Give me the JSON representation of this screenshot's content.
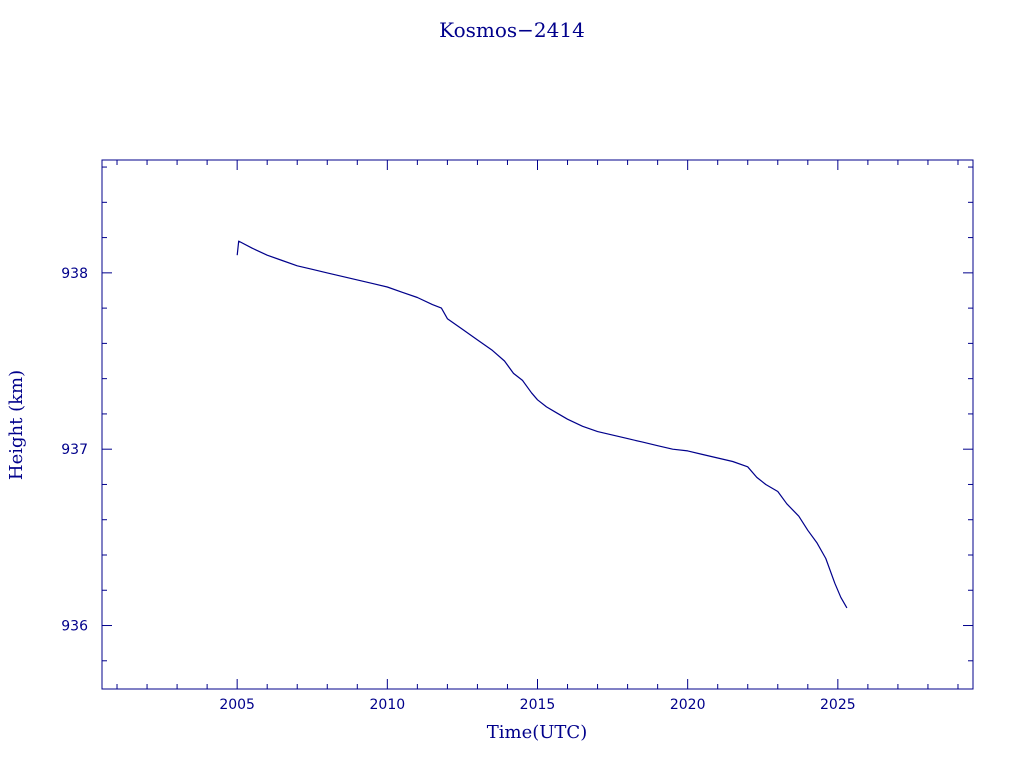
{
  "chart_data": {
    "type": "line",
    "title": "Kosmos−2414",
    "xlabel": "Time(UTC)",
    "ylabel": "Height (km)",
    "xlim": [
      2000.5,
      2029.5
    ],
    "ylim": [
      935.64,
      938.64
    ],
    "x_ticks": [
      "2005",
      "2010",
      "2015",
      "2020",
      "2025"
    ],
    "y_ticks": [
      "936",
      "937",
      "938"
    ],
    "grid": false,
    "series": [
      {
        "color": "#00008b",
        "x": [
          2005.0,
          2005.05,
          2005.5,
          2006.0,
          2006.5,
          2007.0,
          2007.5,
          2008.0,
          2008.5,
          2009.0,
          2009.5,
          2010.0,
          2010.5,
          2011.0,
          2011.5,
          2011.8,
          2012.0,
          2012.5,
          2013.0,
          2013.5,
          2013.9,
          2014.2,
          2014.5,
          2014.8,
          2015.0,
          2015.3,
          2015.6,
          2016.0,
          2016.5,
          2017.0,
          2017.5,
          2018.0,
          2018.5,
          2019.0,
          2019.5,
          2020.0,
          2020.5,
          2021.0,
          2021.5,
          2022.0,
          2022.3,
          2022.6,
          2023.0,
          2023.3,
          2023.7,
          2024.0,
          2024.3,
          2024.6,
          2024.9,
          2025.1,
          2025.3
        ],
        "y": [
          938.1,
          938.18,
          938.14,
          938.1,
          938.07,
          938.04,
          938.02,
          938.0,
          937.98,
          937.96,
          937.94,
          937.92,
          937.89,
          937.86,
          937.82,
          937.8,
          937.74,
          937.68,
          937.62,
          937.56,
          937.5,
          937.43,
          937.39,
          937.32,
          937.28,
          937.24,
          937.21,
          937.17,
          937.13,
          937.1,
          937.08,
          937.06,
          937.04,
          937.02,
          937.0,
          936.99,
          936.97,
          936.95,
          936.93,
          936.9,
          936.84,
          936.8,
          936.76,
          936.69,
          936.62,
          936.54,
          936.47,
          936.38,
          936.24,
          936.16,
          936.1
        ]
      }
    ]
  }
}
